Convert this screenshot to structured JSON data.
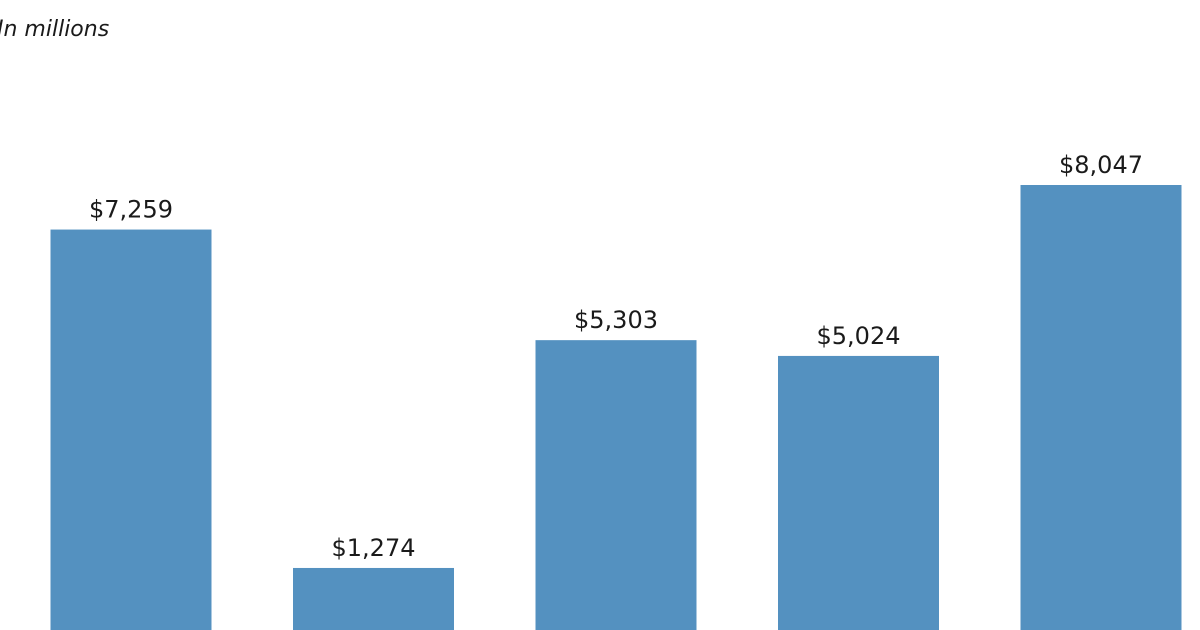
{
  "chart_data": {
    "type": "bar",
    "subtitle": "In millions",
    "categories": [
      null,
      null,
      null,
      null,
      null
    ],
    "values": [
      7259,
      1274,
      5303,
      5024,
      8047
    ],
    "value_labels": [
      "$7,259",
      "$1,274",
      "$5,303",
      "$5,024",
      "$8,047"
    ],
    "color": "#5491c0"
  }
}
